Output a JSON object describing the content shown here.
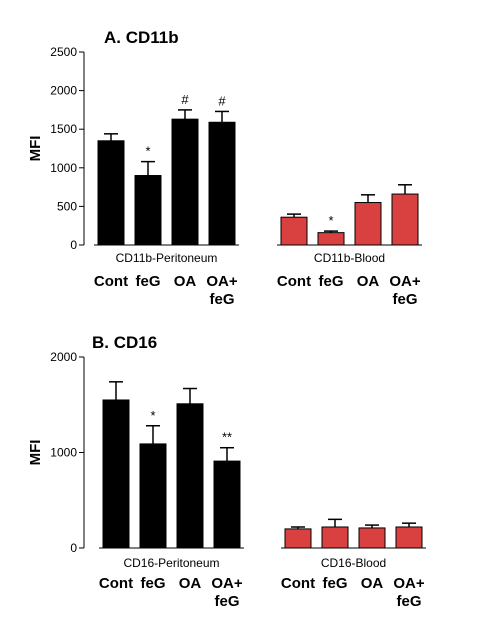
{
  "chart_data": [
    {
      "type": "bar",
      "title": "A. CD11b",
      "ylabel": "MFI",
      "ylim": [
        0,
        2500
      ],
      "yticks": [
        0,
        500,
        1000,
        1500,
        2000,
        2500
      ],
      "groups": [
        {
          "label": "CD11b-Peritoneum",
          "color": "#000000",
          "categories": [
            "Cont",
            "feG",
            "OA",
            "OA+\nfeG"
          ],
          "values": [
            1350,
            900,
            1630,
            1590
          ],
          "errors": [
            90,
            180,
            120,
            140
          ],
          "annotations": [
            "",
            "*",
            "#",
            "#"
          ]
        },
        {
          "label": "CD11b-Blood",
          "color": "#d94040",
          "categories": [
            "Cont",
            "feG",
            "OA",
            "OA+\nfeG"
          ],
          "values": [
            360,
            160,
            550,
            660
          ],
          "errors": [
            40,
            20,
            100,
            120
          ],
          "annotations": [
            "",
            "*",
            "",
            ""
          ]
        }
      ]
    },
    {
      "type": "bar",
      "title": "B. CD16",
      "ylabel": "MFI",
      "ylim": [
        0,
        2000
      ],
      "yticks": [
        0,
        1000,
        2000
      ],
      "groups": [
        {
          "label": "CD16-Peritoneum",
          "color": "#000000",
          "categories": [
            "Cont",
            "feG",
            "OA",
            "OA+\nfeG"
          ],
          "values": [
            1550,
            1090,
            1510,
            910
          ],
          "errors": [
            190,
            190,
            160,
            140
          ],
          "annotations": [
            "",
            "*",
            "",
            "**"
          ]
        },
        {
          "label": "CD16-Blood",
          "color": "#d94040",
          "categories": [
            "Cont",
            "feG",
            "OA",
            "OA+\nfeG"
          ],
          "values": [
            200,
            220,
            210,
            220
          ],
          "errors": [
            20,
            80,
            30,
            40
          ],
          "annotations": [
            "",
            "",
            "",
            ""
          ]
        }
      ]
    }
  ]
}
